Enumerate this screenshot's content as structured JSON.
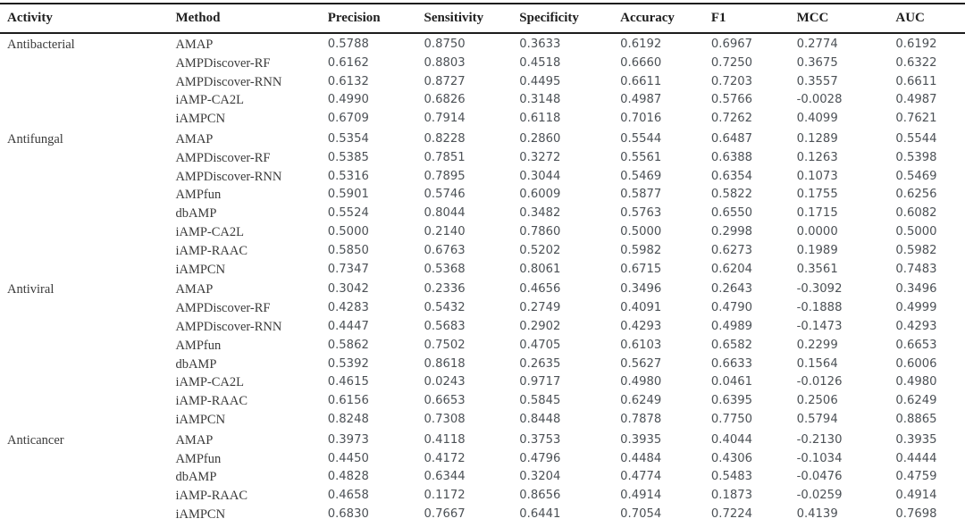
{
  "colors": {
    "rule": "#1c1c1c",
    "header_text": "#1e1e1e",
    "label_text": "#3a3a3a",
    "number_text": "#4c5156",
    "background": "#ffffff"
  },
  "table": {
    "columns": [
      "Activity",
      "Method",
      "Precision",
      "Sensitivity",
      "Specificity",
      "Accuracy",
      "F1",
      "MCC",
      "AUC"
    ],
    "groups": [
      {
        "activity": "Antibacterial",
        "rows": [
          {
            "method": "AMAP",
            "values": [
              "0.5788",
              "0.8750",
              "0.3633",
              "0.6192",
              "0.6967",
              "0.2774",
              "0.6192"
            ]
          },
          {
            "method": "AMPDiscover-RF",
            "values": [
              "0.6162",
              "0.8803",
              "0.4518",
              "0.6660",
              "0.7250",
              "0.3675",
              "0.6322"
            ]
          },
          {
            "method": "AMPDiscover-RNN",
            "values": [
              "0.6132",
              "0.8727",
              "0.4495",
              "0.6611",
              "0.7203",
              "0.3557",
              "0.6611"
            ]
          },
          {
            "method": "iAMP-CA2L",
            "values": [
              "0.4990",
              "0.6826",
              "0.3148",
              "0.4987",
              "0.5766",
              "-0.0028",
              "0.4987"
            ]
          },
          {
            "method": "iAMPCN",
            "values": [
              "0.6709",
              "0.7914",
              "0.6118",
              "0.7016",
              "0.7262",
              "0.4099",
              "0.7621"
            ]
          }
        ]
      },
      {
        "activity": "Antifungal",
        "rows": [
          {
            "method": "AMAP",
            "values": [
              "0.5354",
              "0.8228",
              "0.2860",
              "0.5544",
              "0.6487",
              "0.1289",
              "0.5544"
            ]
          },
          {
            "method": "AMPDiscover-RF",
            "values": [
              "0.5385",
              "0.7851",
              "0.3272",
              "0.5561",
              "0.6388",
              "0.1263",
              "0.5398"
            ]
          },
          {
            "method": "AMPDiscover-RNN",
            "values": [
              "0.5316",
              "0.7895",
              "0.3044",
              "0.5469",
              "0.6354",
              "0.1073",
              "0.5469"
            ]
          },
          {
            "method": "AMPfun",
            "values": [
              "0.5901",
              "0.5746",
              "0.6009",
              "0.5877",
              "0.5822",
              "0.1755",
              "0.6256"
            ]
          },
          {
            "method": "dbAMP",
            "values": [
              "0.5524",
              "0.8044",
              "0.3482",
              "0.5763",
              "0.6550",
              "0.1715",
              "0.6082"
            ]
          },
          {
            "method": "iAMP-CA2L",
            "values": [
              "0.5000",
              "0.2140",
              "0.7860",
              "0.5000",
              "0.2998",
              "0.0000",
              "0.5000"
            ]
          },
          {
            "method": "iAMP-RAAC",
            "values": [
              "0.5850",
              "0.6763",
              "0.5202",
              "0.5982",
              "0.6273",
              "0.1989",
              "0.5982"
            ]
          },
          {
            "method": "iAMPCN",
            "values": [
              "0.7347",
              "0.5368",
              "0.8061",
              "0.6715",
              "0.6204",
              "0.3561",
              "0.7483"
            ]
          }
        ]
      },
      {
        "activity": "Antiviral",
        "rows": [
          {
            "method": "AMAP",
            "values": [
              "0.3042",
              "0.2336",
              "0.4656",
              "0.3496",
              "0.2643",
              "-0.3092",
              "0.3496"
            ]
          },
          {
            "method": "AMPDiscover-RF",
            "values": [
              "0.4283",
              "0.5432",
              "0.2749",
              "0.4091",
              "0.4790",
              "-0.1888",
              "0.4999"
            ]
          },
          {
            "method": "AMPDiscover-RNN",
            "values": [
              "0.4447",
              "0.5683",
              "0.2902",
              "0.4293",
              "0.4989",
              "-0.1473",
              "0.4293"
            ]
          },
          {
            "method": "AMPfun",
            "values": [
              "0.5862",
              "0.7502",
              "0.4705",
              "0.6103",
              "0.6582",
              "0.2299",
              "0.6653"
            ]
          },
          {
            "method": "dbAMP",
            "values": [
              "0.5392",
              "0.8618",
              "0.2635",
              "0.5627",
              "0.6633",
              "0.1564",
              "0.6006"
            ]
          },
          {
            "method": "iAMP-CA2L",
            "values": [
              "0.4615",
              "0.0243",
              "0.9717",
              "0.4980",
              "0.0461",
              "-0.0126",
              "0.4980"
            ]
          },
          {
            "method": "iAMP-RAAC",
            "values": [
              "0.6156",
              "0.6653",
              "0.5845",
              "0.6249",
              "0.6395",
              "0.2506",
              "0.6249"
            ]
          },
          {
            "method": "iAMPCN",
            "values": [
              "0.8248",
              "0.7308",
              "0.8448",
              "0.7878",
              "0.7750",
              "0.5794",
              "0.8865"
            ]
          }
        ]
      },
      {
        "activity": "Anticancer",
        "rows": [
          {
            "method": "AMAP",
            "values": [
              "0.3973",
              "0.4118",
              "0.3753",
              "0.3935",
              "0.4044",
              "-0.2130",
              "0.3935"
            ]
          },
          {
            "method": "AMPfun",
            "values": [
              "0.4450",
              "0.4172",
              "0.4796",
              "0.4484",
              "0.4306",
              "-0.1034",
              "0.4444"
            ]
          },
          {
            "method": "dbAMP",
            "values": [
              "0.4828",
              "0.6344",
              "0.3204",
              "0.4774",
              "0.5483",
              "-0.0476",
              "0.4759"
            ]
          },
          {
            "method": "iAMP-RAAC",
            "values": [
              "0.4658",
              "0.1172",
              "0.8656",
              "0.4914",
              "0.1873",
              "-0.0259",
              "0.4914"
            ]
          },
          {
            "method": "iAMPCN",
            "values": [
              "0.6830",
              "0.7667",
              "0.6441",
              "0.7054",
              "0.7224",
              "0.4139",
              "0.7698"
            ]
          }
        ]
      }
    ]
  }
}
